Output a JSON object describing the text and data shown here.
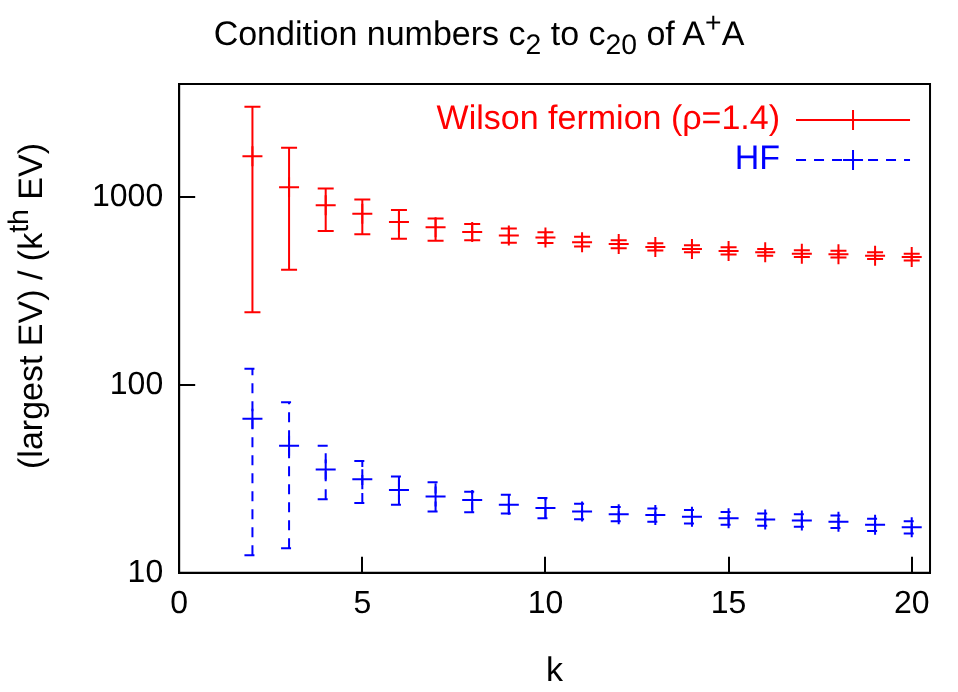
{
  "chart_data": {
    "type": "scatter",
    "title": "Condition numbers c$_{2}$ to c$_{20}$ of A$^{+}$A",
    "xlabel": "k",
    "ylabel": "(largest EV) / (k$^{th}$ EV)",
    "log": "y",
    "grid": false,
    "legend": "top right",
    "xlim": [
      0,
      20.5
    ],
    "xticks": [
      0,
      5,
      10,
      15,
      20
    ],
    "ylim": [
      10,
      4000
    ],
    "yticks": [
      10,
      100,
      1000
    ],
    "x": [
      2,
      3,
      4,
      5,
      6,
      7,
      8,
      9,
      10,
      11,
      12,
      13,
      14,
      15,
      16,
      17,
      18,
      19,
      20
    ],
    "series": [
      {
        "name": "Wilson fermion (ρ=1.4)",
        "color": "#ff0000",
        "marker": "cross",
        "line_style": "solid",
        "values": [
          1650,
          1130,
          905,
          815,
          738,
          690,
          652,
          625,
          610,
          575,
          562,
          542,
          530,
          517,
          508,
          500,
          497,
          488,
          480
        ],
        "errors": [
          [
            244,
            3030
          ],
          [
            410,
            1830
          ],
          [
            660,
            1110
          ],
          [
            635,
            970
          ],
          [
            600,
            855
          ],
          [
            585,
            770
          ],
          [
            590,
            720
          ],
          [
            572,
            680
          ],
          [
            570,
            650
          ],
          [
            545,
            615
          ],
          [
            535,
            590
          ],
          [
            520,
            568
          ],
          [
            508,
            555
          ],
          [
            495,
            540
          ],
          [
            487,
            530
          ],
          [
            480,
            522
          ],
          [
            477,
            518
          ],
          [
            468,
            508
          ],
          [
            460,
            500
          ]
        ]
      },
      {
        "name": "HF",
        "color": "#0000ff",
        "marker": "cross",
        "line_style": "dashed",
        "values": [
          66,
          47.5,
          35.5,
          31.5,
          27.6,
          25.5,
          24.4,
          23,
          22.1,
          21.2,
          20.5,
          20.3,
          19.9,
          19.5,
          19.2,
          19,
          18.7,
          18,
          17.5
        ],
        "errors": [
          [
            12.4,
            122
          ],
          [
            13.5,
            81
          ],
          [
            24.6,
            47.5
          ],
          [
            23.5,
            39.4
          ],
          [
            23,
            32.6
          ],
          [
            21.2,
            30.3
          ],
          [
            21,
            27
          ],
          [
            20.7,
            26
          ],
          [
            19.5,
            25
          ],
          [
            19.3,
            23.3
          ],
          [
            18.8,
            22.4
          ],
          [
            18.7,
            22
          ],
          [
            18.3,
            21.6
          ],
          [
            18,
            21.1
          ],
          [
            17.8,
            20.7
          ],
          [
            17.6,
            20.5
          ],
          [
            17.3,
            20.2
          ],
          [
            16.7,
            19.4
          ],
          [
            16.2,
            18.8
          ]
        ]
      }
    ]
  }
}
